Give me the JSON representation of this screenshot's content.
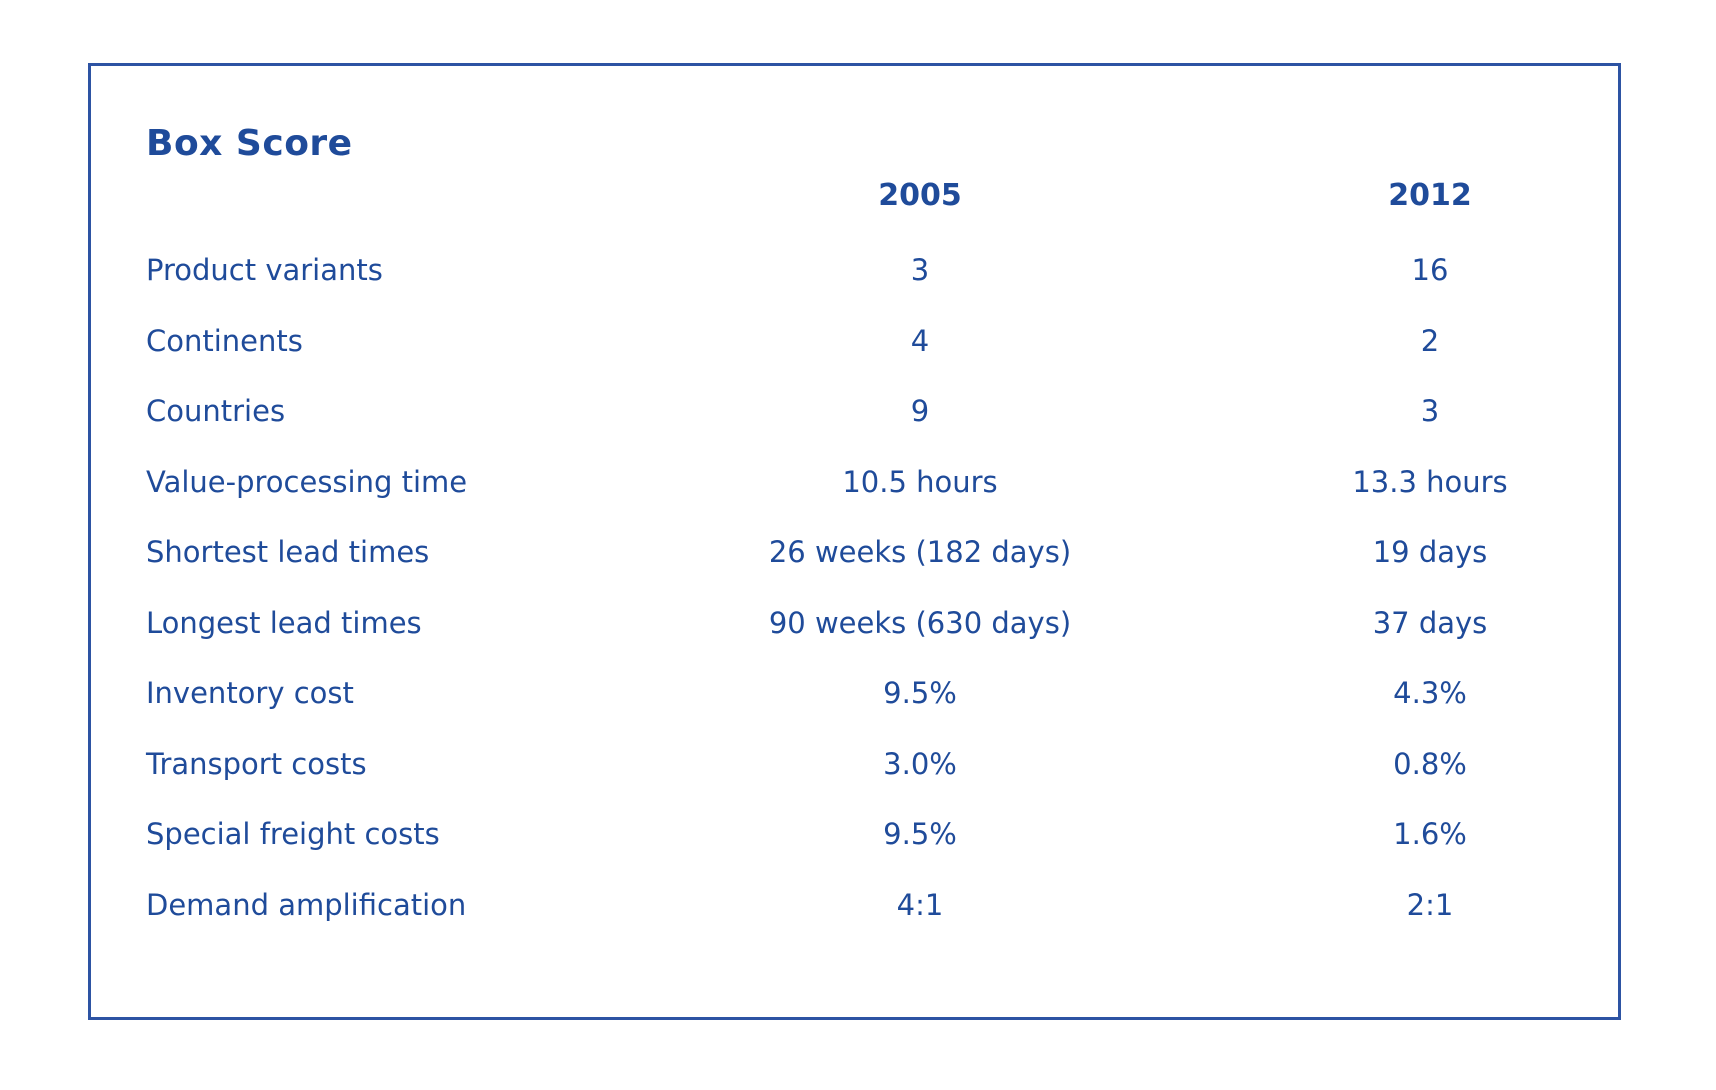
{
  "page": {
    "background": "#ffffff",
    "text_color": "#1f4b9a",
    "border_color": "#2d53a3"
  },
  "chart_data": {
    "type": "table",
    "title": "Box Score",
    "column_headers": [
      "2005",
      "2012"
    ],
    "row_labels": [
      "Product variants",
      "Continents",
      "Countries",
      "Value-processing time",
      "Shortest lead times",
      "Longest lead times",
      "Inventory cost",
      "Transport costs",
      "Special freight costs",
      "Demand amplification"
    ],
    "rows": [
      [
        "3",
        "16"
      ],
      [
        "4",
        "2"
      ],
      [
        "9",
        "3"
      ],
      [
        "10.5 hours",
        "13.3 hours"
      ],
      [
        "26 weeks (182 days)",
        "19 days"
      ],
      [
        "90 weeks (630 days)",
        "37 days"
      ],
      [
        "9.5%",
        "4.3%"
      ],
      [
        "3.0%",
        "0.8%"
      ],
      [
        "9.5%",
        "1.6%"
      ],
      [
        "4:1",
        "2:1"
      ]
    ]
  }
}
